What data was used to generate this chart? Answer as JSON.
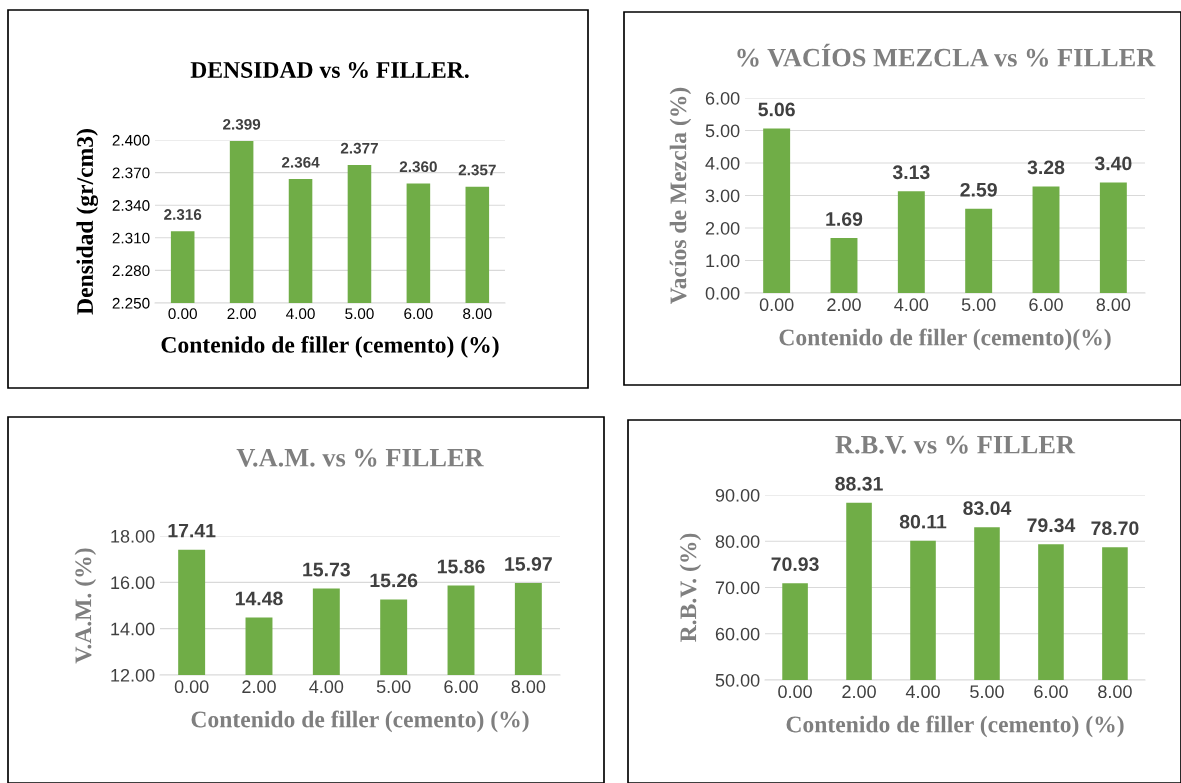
{
  "chart_data": [
    {
      "type": "bar",
      "title": "DENSIDAD vs % FILLER.",
      "xlabel": "Contenido de filler (cemento) (%)",
      "ylabel": "Densidad (gr/cm3)",
      "categories": [
        "0.00",
        "2.00",
        "4.00",
        "5.00",
        "6.00",
        "8.00"
      ],
      "values": [
        2.316,
        2.399,
        2.364,
        2.377,
        2.36,
        2.357
      ],
      "value_labels": [
        "2.316",
        "2.399",
        "2.364",
        "2.377",
        "2.360",
        "2.357"
      ],
      "color": "#70ad47",
      "ylim": [
        2.25,
        2.4
      ],
      "yticks": [
        {
          "value": 2.25,
          "label": "2.250"
        },
        {
          "value": 2.28,
          "label": "2.280"
        },
        {
          "value": 2.31,
          "label": "2.310"
        },
        {
          "value": 2.34,
          "label": "2.340"
        },
        {
          "value": 2.37,
          "label": "2.370"
        },
        {
          "value": 2.4,
          "label": "2.400"
        }
      ],
      "grid": "y",
      "legend": false
    },
    {
      "type": "bar",
      "title": "% VACÍOS MEZCLA vs % FILLER",
      "xlabel": "Contenido de filler (cemento)(%)",
      "ylabel": "Vacíos de Mezcla (%)",
      "categories": [
        "0.00",
        "2.00",
        "4.00",
        "5.00",
        "6.00",
        "8.00"
      ],
      "values": [
        5.06,
        1.69,
        3.13,
        2.59,
        3.28,
        3.4
      ],
      "value_labels": [
        "5.06",
        "1.69",
        "3.13",
        "2.59",
        "3.28",
        "3.40"
      ],
      "color": "#70ad47",
      "ylim": [
        0,
        6
      ],
      "yticks": [
        {
          "value": 0,
          "label": "0.00"
        },
        {
          "value": 1,
          "label": "1.00"
        },
        {
          "value": 2,
          "label": "2.00"
        },
        {
          "value": 3,
          "label": "3.00"
        },
        {
          "value": 4,
          "label": "4.00"
        },
        {
          "value": 5,
          "label": "5.00"
        },
        {
          "value": 6,
          "label": "6.00"
        }
      ],
      "grid": "y",
      "legend": false
    },
    {
      "type": "bar",
      "title": "V.A.M. vs % FILLER",
      "xlabel": "Contenido de filler (cemento) (%)",
      "ylabel": "V.A.M. (%)",
      "categories": [
        "0.00",
        "2.00",
        "4.00",
        "5.00",
        "6.00",
        "8.00"
      ],
      "values": [
        17.41,
        14.48,
        15.73,
        15.26,
        15.86,
        15.97
      ],
      "value_labels": [
        "17.41",
        "14.48",
        "15.73",
        "15.26",
        "15.86",
        "15.97"
      ],
      "color": "#70ad47",
      "ylim": [
        12,
        18
      ],
      "yticks": [
        {
          "value": 12,
          "label": "12.00"
        },
        {
          "value": 14,
          "label": "14.00"
        },
        {
          "value": 16,
          "label": "16.00"
        },
        {
          "value": 18,
          "label": "18.00"
        }
      ],
      "grid": "y",
      "legend": false
    },
    {
      "type": "bar",
      "title": "R.B.V. vs % FILLER",
      "xlabel": "Contenido de filler (cemento) (%)",
      "ylabel": "R.B.V. (%)",
      "categories": [
        "0.00",
        "2.00",
        "4.00",
        "5.00",
        "6.00",
        "8.00"
      ],
      "values": [
        70.93,
        88.31,
        80.11,
        83.04,
        79.34,
        78.7
      ],
      "value_labels": [
        "70.93",
        "88.31",
        "80.11",
        "83.04",
        "79.34",
        "78.70"
      ],
      "color": "#70ad47",
      "ylim": [
        50,
        90
      ],
      "yticks": [
        {
          "value": 50,
          "label": "50.00"
        },
        {
          "value": 60,
          "label": "60.00"
        },
        {
          "value": 70,
          "label": "70.00"
        },
        {
          "value": 80,
          "label": "80.00"
        },
        {
          "value": 90,
          "label": "90.00"
        }
      ],
      "grid": "y",
      "legend": false
    }
  ]
}
